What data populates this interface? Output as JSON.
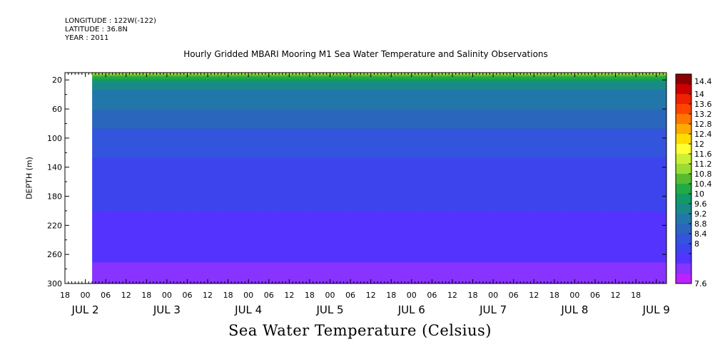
{
  "header": {
    "longitude": "LONGITUDE : 122W(-122)",
    "latitude": "LATITUDE : 36.8N",
    "year": "YEAR : 2011"
  },
  "chart_data": {
    "type": "heatmap",
    "title": "Hourly Gridded MBARI Mooring M1 Sea Water Temperature and Salinity Observations",
    "xlabel": "",
    "ylabel": "DEPTH (m)",
    "colorbar_label": "Sea Water Temperature (Celsius)",
    "y_ticks": [
      20,
      60,
      100,
      140,
      180,
      220,
      260,
      300
    ],
    "ylim": [
      300,
      10
    ],
    "x_hour_ticks": [
      "18",
      "00",
      "06",
      "12",
      "18",
      "00",
      "06",
      "12",
      "18",
      "00",
      "06",
      "12",
      "18",
      "00",
      "06",
      "12",
      "18",
      "00",
      "06",
      "12",
      "18",
      "00",
      "06",
      "12",
      "18",
      "00",
      "06",
      "12",
      "18"
    ],
    "x_day_labels": [
      "JUL 2",
      "JUL 3",
      "JUL 4",
      "JUL 5",
      "JUL 6",
      "JUL 7",
      "JUL 8",
      "JUL 9"
    ],
    "xlim_hours": [
      -6,
      171
    ],
    "data_start_hour": 2,
    "colorbar": {
      "levels": [
        "14.4",
        "14",
        "13.6",
        "13.2",
        "12.8",
        "12.4",
        "12",
        "11.6",
        "11.2",
        "10.8",
        "10.4",
        "10",
        "9.6",
        "9.2",
        "8.8",
        "8.4",
        "8",
        "7.6"
      ],
      "colors": [
        "#8b0000",
        "#cc0000",
        "#ee2200",
        "#ff4400",
        "#ff7700",
        "#ffaa00",
        "#ffdd00",
        "#ffff33",
        "#ccee33",
        "#99dd33",
        "#55bb33",
        "#22aa44",
        "#119966",
        "#1a8a88",
        "#2277aa",
        "#2a66bb",
        "#3355dd",
        "#3d44ee",
        "#5533ff",
        "#8833ff",
        "#bb22ff"
      ]
    },
    "temperature_profile": [
      {
        "depth": 10,
        "temp": 12.4
      },
      {
        "depth": 15,
        "temp": 11.2
      },
      {
        "depth": 25,
        "temp": 10.2
      },
      {
        "depth": 40,
        "temp": 9.8
      },
      {
        "depth": 60,
        "temp": 9.6
      },
      {
        "depth": 80,
        "temp": 9.3
      },
      {
        "depth": 100,
        "temp": 9.0
      },
      {
        "depth": 140,
        "temp": 8.7
      },
      {
        "depth": 180,
        "temp": 8.5
      },
      {
        "depth": 220,
        "temp": 8.3
      },
      {
        "depth": 260,
        "temp": 8.1
      },
      {
        "depth": 300,
        "temp": 7.7
      }
    ]
  }
}
